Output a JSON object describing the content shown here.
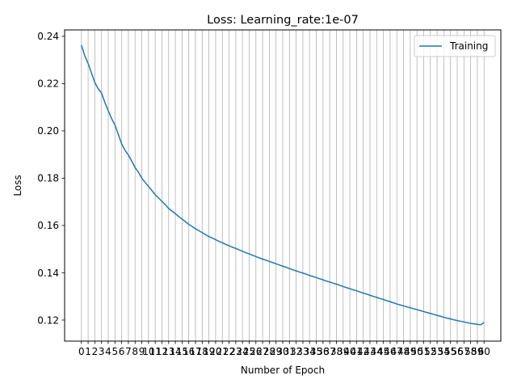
{
  "chart_data": {
    "type": "line",
    "title": "Loss: Learning_rate:1e-07",
    "xlabel": "Number of Epoch",
    "ylabel": "Loss",
    "xlim": [
      -2.5,
      62.5
    ],
    "ylim": [
      0.1111,
      0.2427
    ],
    "yticks": [
      0.12,
      0.14,
      0.16,
      0.18,
      0.2,
      0.22,
      0.24
    ],
    "ytick_labels": [
      "0.12",
      "0.14",
      "0.16",
      "0.18",
      "0.20",
      "0.22",
      "0.24"
    ],
    "xticks": [
      0,
      1,
      2,
      3,
      4,
      5,
      6,
      7,
      8,
      9,
      10,
      11,
      12,
      13,
      14,
      15,
      16,
      17,
      18,
      19,
      20,
      21,
      22,
      23,
      24,
      25,
      26,
      27,
      28,
      29,
      30,
      31,
      32,
      33,
      34,
      35,
      36,
      37,
      38,
      39,
      40,
      41,
      42,
      43,
      44,
      45,
      46,
      47,
      48,
      49,
      50,
      51,
      52,
      53,
      54,
      55,
      56,
      57,
      58,
      59,
      60
    ],
    "xtick_labels": [
      "0",
      "1",
      "2",
      "3",
      "4",
      "5",
      "6",
      "7",
      "8",
      "9",
      "10",
      "11",
      "12",
      "13",
      "14",
      "15",
      "16",
      "17",
      "18",
      "19",
      "20",
      "21",
      "22",
      "23",
      "24",
      "25",
      "26",
      "27",
      "28",
      "29",
      "30",
      "31",
      "32",
      "33",
      "34",
      "35",
      "36",
      "37",
      "38",
      "39",
      "40",
      "41",
      "42",
      "43",
      "44",
      "45",
      "46",
      "47",
      "48",
      "49",
      "50",
      "51",
      "52",
      "53",
      "54",
      "55",
      "56",
      "57",
      "58",
      "59",
      "60"
    ],
    "grid": "x-vertical",
    "legend": "top-right",
    "series": [
      {
        "name": "Training",
        "color": "#1f77b4",
        "x": [
          0,
          0.5,
          1,
          1.5,
          2,
          2.5,
          3,
          3.5,
          4,
          4.5,
          5,
          5.5,
          6,
          6.5,
          7,
          7.5,
          8,
          8.5,
          9,
          9.5,
          10,
          10.5,
          11,
          11.5,
          12,
          12.5,
          13,
          13.5,
          14,
          14.5,
          15,
          15.5,
          16,
          16.5,
          17,
          17.5,
          18,
          18.5,
          19,
          19.5,
          20,
          20.5,
          21,
          21.5,
          22,
          22.5,
          23,
          23.5,
          24,
          24.5,
          25,
          25.5,
          26,
          26.5,
          27,
          27.5,
          28,
          28.5,
          29,
          29.5,
          30,
          30.5,
          31,
          31.5,
          32,
          32.5,
          33,
          33.5,
          34,
          34.5,
          35,
          35.5,
          36,
          36.5,
          37,
          37.5,
          38,
          38.5,
          39,
          39.5,
          40,
          40.5,
          41,
          41.5,
          42,
          42.5,
          43,
          43.5,
          44,
          44.5,
          45,
          45.5,
          46,
          46.5,
          47,
          47.5,
          48,
          48.5,
          49,
          49.5,
          50,
          50.5,
          51,
          51.5,
          52,
          52.5,
          53,
          53.5,
          54,
          54.5,
          55,
          55.5,
          56,
          56.5,
          57,
          57.5,
          58,
          58.5,
          59,
          59.5,
          60
        ],
        "values": [
          0.2363,
          0.2318,
          0.2285,
          0.2245,
          0.2205,
          0.2178,
          0.216,
          0.212,
          0.2085,
          0.2052,
          0.2025,
          0.1985,
          0.1945,
          0.1918,
          0.1898,
          0.1872,
          0.1845,
          0.1825,
          0.18,
          0.1782,
          0.1765,
          0.1748,
          0.173,
          0.1716,
          0.1702,
          0.1688,
          0.1672,
          0.1661,
          0.165,
          0.1638,
          0.1627,
          0.1616,
          0.1605,
          0.1596,
          0.1586,
          0.1578,
          0.157,
          0.1561,
          0.1553,
          0.1547,
          0.154,
          0.1533,
          0.1527,
          0.152,
          0.1514,
          0.1508,
          0.1503,
          0.1497,
          0.1491,
          0.1485,
          0.148,
          0.1474,
          0.1469,
          0.1463,
          0.1458,
          0.1453,
          0.1448,
          0.1443,
          0.1438,
          0.1433,
          0.1428,
          0.1423,
          0.1418,
          0.1413,
          0.1408,
          0.1403,
          0.1399,
          0.1394,
          0.1389,
          0.1384,
          0.138,
          0.1375,
          0.137,
          0.1365,
          0.1361,
          0.1356,
          0.1352,
          0.1347,
          0.1342,
          0.1337,
          0.1333,
          0.1328,
          0.1324,
          0.1319,
          0.1314,
          0.131,
          0.1305,
          0.13,
          0.1296,
          0.1291,
          0.1287,
          0.1282,
          0.1278,
          0.1273,
          0.1268,
          0.1264,
          0.126,
          0.1256,
          0.1252,
          0.1248,
          0.1244,
          0.124,
          0.1236,
          0.1232,
          0.1228,
          0.1224,
          0.122,
          0.1216,
          0.1212,
          0.1208,
          0.1205,
          0.1201,
          0.1198,
          0.1195,
          0.1192,
          0.1189,
          0.1186,
          0.1184,
          0.1182,
          0.118,
          0.119
        ]
      }
    ]
  }
}
